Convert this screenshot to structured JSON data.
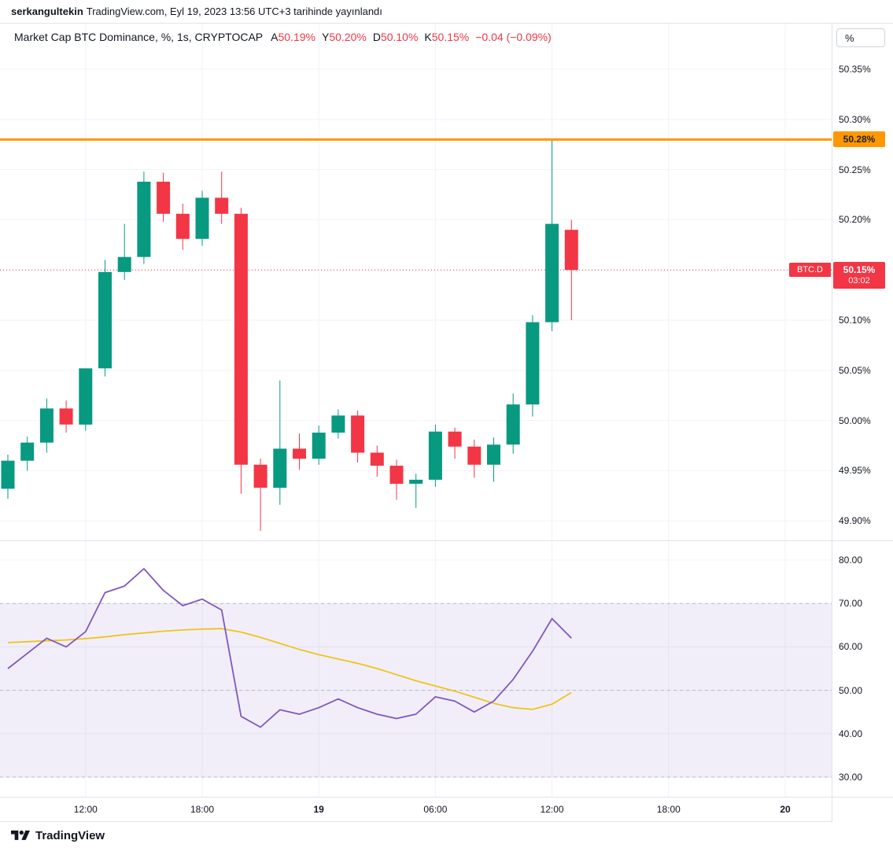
{
  "header": {
    "author": "serkangultekin",
    "meta": "TradingView.com, Eyl 19, 2023 13:56 UTC+3 tarihinde yayınlandı"
  },
  "price_scale": {
    "unit_button": "%"
  },
  "legend": {
    "title": "Market Cap BTC Dominance, %, 1s, CRYPTOCAP",
    "ohlc": [
      {
        "label": "A",
        "value": "50.19%"
      },
      {
        "label": "Y",
        "value": "50.20%"
      },
      {
        "label": "D",
        "value": "50.10%"
      },
      {
        "label": "K",
        "value": "50.15%"
      }
    ],
    "change": "−0.04 (−0.09%)"
  },
  "footer": {
    "brand": "TradingView"
  },
  "colors": {
    "up": "#089981",
    "down": "#f23645",
    "hline": "#ff9800",
    "rsi": "#7e57c2",
    "rsi_ma": "#f0c418",
    "band_fill": "rgba(126,87,194,0.1)",
    "grid": "#f0f3fa",
    "guide": "#a3a6af",
    "text": "#131722",
    "border": "#e0e3eb"
  },
  "chart_data": [
    {
      "type": "candlestick",
      "title": "Market Cap BTC Dominance",
      "symbol": "CRYPTOCAP:BTC.D",
      "interval": "1s (1 hour, Turkish locale)",
      "ylabel": "%",
      "y_range": [
        49.8806,
        50.3955
      ],
      "grid": true,
      "y_ticks": [
        {
          "value": 50.35,
          "label": "50.35%"
        },
        {
          "value": 50.3,
          "label": "50.30%"
        },
        {
          "value": 50.25,
          "label": "50.25%"
        },
        {
          "value": 50.2,
          "label": "50.20%"
        },
        {
          "value": 50.15,
          "label": "50.15%"
        },
        {
          "value": 50.1,
          "label": "50.10%"
        },
        {
          "value": 50.05,
          "label": "50.05%"
        },
        {
          "value": 50.0,
          "label": "50.00%"
        },
        {
          "value": 49.95,
          "label": "49.95%"
        },
        {
          "value": 49.9,
          "label": "49.90%"
        }
      ],
      "x_ticks": [
        {
          "text": "12:00",
          "index": 4,
          "bold": false
        },
        {
          "text": "18:00",
          "index": 10,
          "bold": false
        },
        {
          "text": "19",
          "index": 16,
          "bold": true
        },
        {
          "text": "06:00",
          "index": 22,
          "bold": false
        },
        {
          "text": "12:00",
          "index": 28,
          "bold": false
        },
        {
          "text": "18:00",
          "index": 34,
          "bold": false
        },
        {
          "text": "20",
          "index": 40,
          "bold": true
        }
      ],
      "hline": {
        "value": 50.28,
        "label": "50.28%"
      },
      "last_price": {
        "value": 50.15,
        "label": "50.15%",
        "countdown": "03:02",
        "tag": "BTC.D"
      },
      "candles_columns": [
        "open",
        "high",
        "low",
        "close"
      ],
      "candles": [
        [
          49.932,
          49.966,
          49.922,
          49.96
        ],
        [
          49.96,
          49.984,
          49.95,
          49.978
        ],
        [
          49.978,
          50.022,
          49.968,
          50.012
        ],
        [
          50.012,
          50.02,
          49.988,
          49.996
        ],
        [
          49.996,
          50.048,
          49.99,
          50.052
        ],
        [
          50.052,
          50.16,
          50.044,
          50.148
        ],
        [
          50.148,
          50.196,
          50.14,
          50.163
        ],
        [
          50.163,
          50.248,
          50.156,
          50.238
        ],
        [
          50.238,
          50.247,
          50.198,
          50.206
        ],
        [
          50.206,
          50.216,
          50.17,
          50.181
        ],
        [
          50.181,
          50.229,
          50.174,
          50.222
        ],
        [
          50.222,
          50.248,
          50.196,
          50.206
        ],
        [
          50.206,
          50.212,
          49.927,
          49.956
        ],
        [
          49.956,
          49.962,
          49.89,
          49.933
        ],
        [
          49.933,
          50.04,
          49.916,
          49.972
        ],
        [
          49.972,
          49.987,
          49.951,
          49.962
        ],
        [
          49.962,
          49.995,
          49.956,
          49.988
        ],
        [
          49.988,
          50.011,
          49.982,
          50.005
        ],
        [
          50.005,
          50.01,
          49.958,
          49.968
        ],
        [
          49.968,
          49.975,
          49.944,
          49.955
        ],
        [
          49.955,
          49.961,
          49.921,
          49.937
        ],
        [
          49.937,
          49.947,
          49.913,
          49.941
        ],
        [
          49.941,
          49.996,
          49.934,
          49.989
        ],
        [
          49.989,
          49.993,
          49.962,
          49.974
        ],
        [
          49.974,
          49.981,
          49.943,
          49.956
        ],
        [
          49.956,
          49.983,
          49.939,
          49.976
        ],
        [
          49.976,
          50.027,
          49.967,
          50.016
        ],
        [
          50.016,
          50.105,
          50.004,
          50.098
        ],
        [
          50.098,
          50.281,
          50.089,
          50.196
        ],
        [
          50.19,
          50.2,
          50.1,
          50.15
        ]
      ]
    },
    {
      "type": "line",
      "name": "RSI",
      "y_range": [
        25.47,
        84.53
      ],
      "grid": true,
      "y_ticks": [
        {
          "value": 80,
          "label": "80.00"
        },
        {
          "value": 70,
          "label": "70.00"
        },
        {
          "value": 60,
          "label": "60.00"
        },
        {
          "value": 50,
          "label": "50.00"
        },
        {
          "value": 40,
          "label": "40.00"
        },
        {
          "value": 30,
          "label": "30.00"
        }
      ],
      "guides": [
        70,
        50,
        30
      ],
      "band": [
        30,
        70
      ],
      "series": [
        {
          "name": "RSI",
          "color_key": "rsi",
          "values": [
            55.0,
            58.5,
            62.0,
            60.0,
            63.5,
            72.5,
            74.0,
            78.0,
            73.0,
            69.5,
            71.0,
            68.5,
            44.0,
            41.5,
            45.5,
            44.5,
            46.0,
            48.0,
            46.0,
            44.5,
            43.5,
            44.5,
            48.5,
            47.5,
            45.0,
            47.5,
            52.5,
            59.0,
            66.5,
            62.0
          ]
        },
        {
          "name": "RSI-based MA",
          "color_key": "rsi_ma",
          "values": [
            61.0,
            61.2,
            61.4,
            61.6,
            61.9,
            62.3,
            62.8,
            63.2,
            63.6,
            63.9,
            64.1,
            64.2,
            63.4,
            62.2,
            60.8,
            59.4,
            58.2,
            57.2,
            56.2,
            55.0,
            53.6,
            52.2,
            51.0,
            49.8,
            48.4,
            47.0,
            46.0,
            45.6,
            46.8,
            49.5
          ]
        }
      ]
    }
  ]
}
